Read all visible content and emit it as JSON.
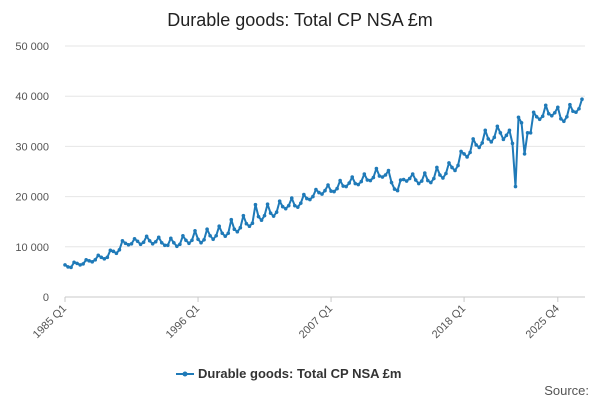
{
  "chart_data": {
    "type": "line",
    "title": "Durable goods: Total CP NSA £m",
    "xlabel": "",
    "ylabel": "",
    "ylim": [
      0,
      50000
    ],
    "yticks": [
      0,
      10000,
      20000,
      30000,
      40000,
      50000
    ],
    "ytick_labels": [
      "0",
      "10 000",
      "20 000",
      "30 000",
      "40 000",
      "50 000"
    ],
    "xtick_labels": [
      "1985 Q1",
      "1996 Q1",
      "2007 Q1",
      "2018 Q1",
      "2025 Q4"
    ],
    "xtick_indices": [
      0,
      44,
      88,
      132,
      163
    ],
    "grid": true,
    "legend_position": "bottom",
    "source_label": "Source:",
    "colors": {
      "series": "#1f7ab8"
    },
    "series": [
      {
        "name": "Durable goods: Total CP NSA £m",
        "start": "1985 Q1",
        "frequency": "quarterly",
        "values": [
          6400,
          6000,
          5900,
          6900,
          6700,
          6400,
          6600,
          7400,
          7200,
          7000,
          7400,
          8300,
          7900,
          7600,
          7900,
          9300,
          9100,
          8700,
          9400,
          11200,
          10700,
          10400,
          10600,
          11600,
          11100,
          10500,
          10900,
          12100,
          11200,
          10600,
          11000,
          11900,
          10800,
          10300,
          10300,
          11700,
          10800,
          10100,
          10500,
          12200,
          11300,
          10700,
          11300,
          13200,
          11500,
          10800,
          11400,
          13500,
          12200,
          11500,
          12200,
          14100,
          12700,
          12100,
          12700,
          15400,
          13500,
          13000,
          13800,
          16200,
          14600,
          14100,
          14700,
          18400,
          16000,
          15300,
          16200,
          18500,
          16700,
          16100,
          16900,
          19100,
          18000,
          17600,
          18200,
          19700,
          18200,
          17900,
          18700,
          20400,
          19600,
          19400,
          20000,
          21400,
          20800,
          20500,
          21200,
          22300,
          21100,
          21000,
          21600,
          23200,
          22100,
          22000,
          22700,
          23900,
          22600,
          22400,
          23000,
          24500,
          23300,
          23200,
          23800,
          25600,
          24100,
          23900,
          24300,
          25200,
          22800,
          21500,
          21200,
          23300,
          23400,
          23100,
          23600,
          24500,
          23300,
          22600,
          23100,
          24700,
          23200,
          22800,
          23600,
          25800,
          24300,
          23700,
          24600,
          26700,
          25800,
          25200,
          26200,
          29000,
          28500,
          27900,
          28800,
          31500,
          30300,
          29800,
          30700,
          33200,
          31500,
          30900,
          31800,
          34000,
          32700,
          31400,
          32200,
          33200,
          30600,
          22000,
          35800,
          34700,
          28500,
          32700,
          32700,
          36800
        ],
        "tail_values": [
          35900,
          35400,
          36000,
          38200,
          36500,
          36100,
          36700,
          37800,
          35500,
          35000,
          35900,
          38300,
          37000,
          36800,
          37500,
          39400
        ]
      }
    ]
  }
}
